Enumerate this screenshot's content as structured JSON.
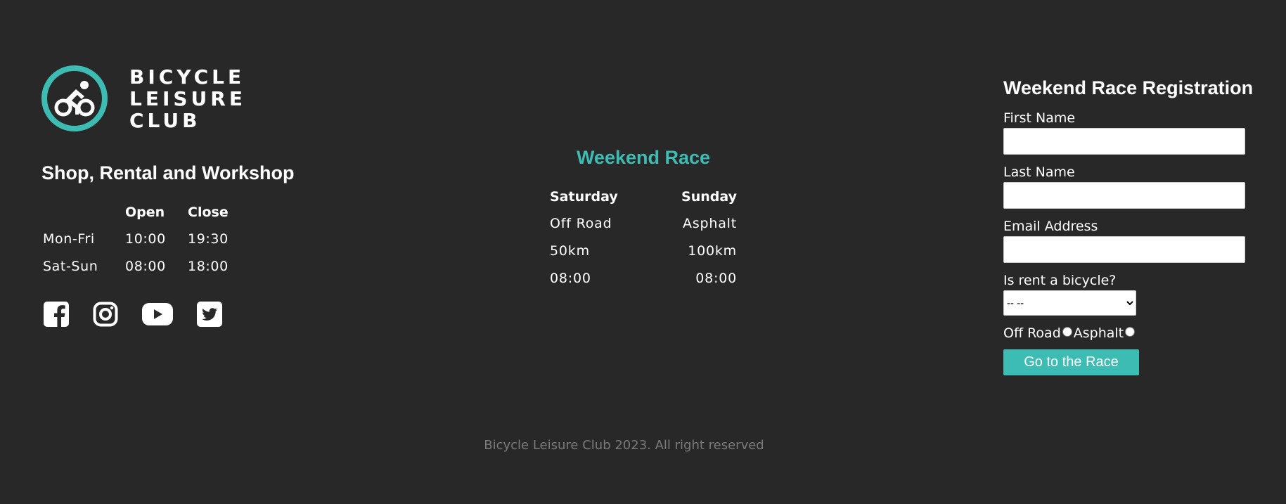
{
  "brand": {
    "name_lines": [
      "BICYCLE",
      "LEISURE",
      "CLUB"
    ],
    "logo_icon": "cyclist-icon",
    "accent_color": "#3dbcb4"
  },
  "shop": {
    "title": "Shop, Rental and Workshop",
    "headers": [
      "",
      "Open",
      "Close"
    ],
    "rows": [
      {
        "day": "Mon-Fri",
        "open": "10:00",
        "close": "19:30"
      },
      {
        "day": "Sat-Sun",
        "open": "08:00",
        "close": "18:00"
      }
    ]
  },
  "social": [
    {
      "name": "facebook-icon"
    },
    {
      "name": "instagram-icon"
    },
    {
      "name": "youtube-icon"
    },
    {
      "name": "twitter-icon"
    }
  ],
  "race": {
    "title": "Weekend Race",
    "headers": [
      "Saturday",
      "Sunday"
    ],
    "rows": [
      [
        "Off Road",
        "Asphalt"
      ],
      [
        "50km",
        "100km"
      ],
      [
        "08:00",
        "08:00"
      ]
    ]
  },
  "form": {
    "title": "Weekend Race Registration",
    "first_name_label": "First Name",
    "first_name_value": "",
    "last_name_label": "Last Name",
    "last_name_value": "",
    "email_label": "Email Address",
    "email_value": "",
    "rent_label": "Is rent a bicycle?",
    "rent_selected": "-- --",
    "radio_offroad_label": "Off Road",
    "radio_asphalt_label": "Asphalt",
    "submit_label": "Go to the Race"
  },
  "footer": {
    "text": "Bicycle Leisure Club 2023. All right reserved"
  }
}
